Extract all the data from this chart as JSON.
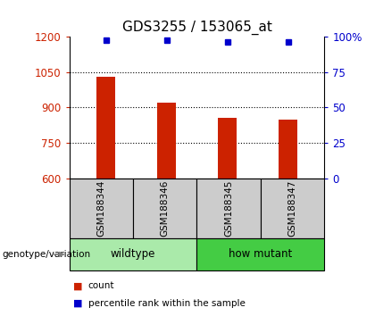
{
  "title": "GDS3255 / 153065_at",
  "samples": [
    "GSM188344",
    "GSM188346",
    "GSM188345",
    "GSM188347"
  ],
  "counts": [
    1030,
    920,
    855,
    850
  ],
  "percentiles": [
    97,
    97,
    96,
    96
  ],
  "ylim_left": [
    600,
    1200
  ],
  "ylim_right": [
    0,
    100
  ],
  "yticks_left": [
    600,
    750,
    900,
    1050,
    1200
  ],
  "yticks_right": [
    0,
    25,
    50,
    75,
    100
  ],
  "bar_color": "#cc2200",
  "dot_color": "#0000cc",
  "groups": [
    {
      "label": "wildtype",
      "samples": [
        0,
        1
      ],
      "color": "#aaeaaa"
    },
    {
      "label": "how mutant",
      "samples": [
        2,
        3
      ],
      "color": "#44cc44"
    }
  ],
  "group_label": "genotype/variation",
  "legend_count_color": "#cc2200",
  "legend_dot_color": "#0000cc",
  "sample_box_color": "#cccccc",
  "title_fontsize": 11,
  "tick_fontsize": 8.5,
  "label_fontsize": 8
}
